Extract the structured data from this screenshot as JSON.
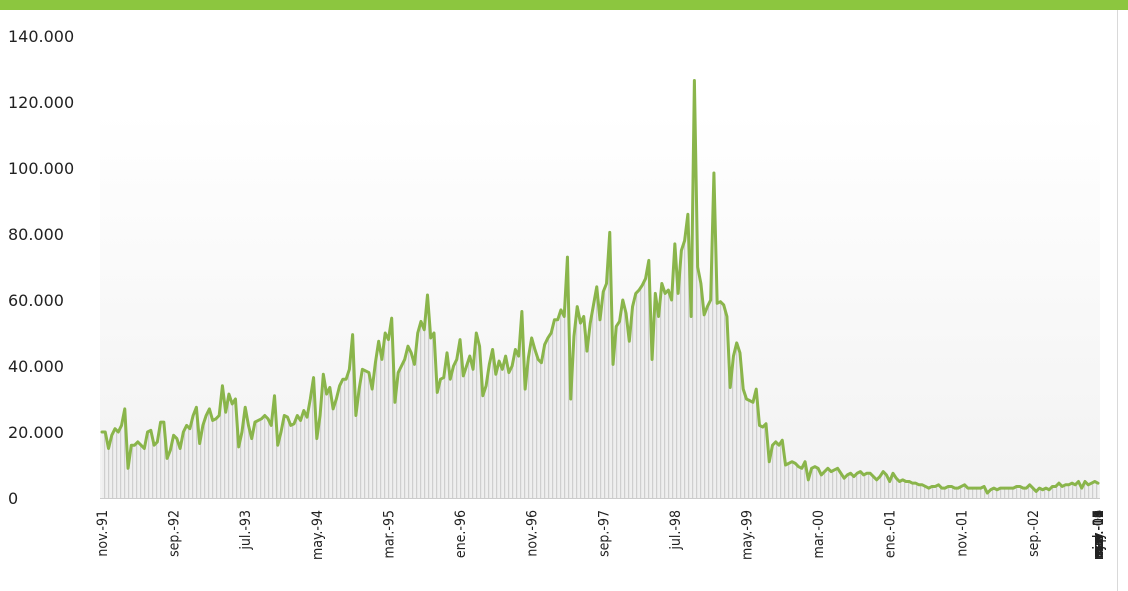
{
  "chart_data": {
    "type": "area",
    "title": "",
    "xlabel": "",
    "ylabel": "",
    "ylim": [
      0,
      140000
    ],
    "yticks": [
      0,
      20000,
      40000,
      60000,
      80000,
      100000,
      120000,
      140000
    ],
    "ytick_labels": [
      "0",
      "20.000",
      "40.000",
      "60.000",
      "80.000",
      "100.000",
      "120.000",
      "140.000"
    ],
    "x_tick_labels": [
      "nov.-91",
      "sep.-92",
      "jul.-93",
      "may.-94",
      "mar.-95",
      "ene.-96",
      "nov.-96",
      "sep.-97",
      "jul.-98",
      "may.-99",
      "mar.-00",
      "ene.-01",
      "nov.-01",
      "sep.-02",
      "jul.-03",
      "may.-04",
      "mar.-05",
      "ene.-06",
      "nov.-06",
      "sep.-07",
      "jul.-08",
      "may.-09",
      "mar.-10",
      "ene.-11",
      "nov.-11",
      "sep.-12",
      "jul.-13",
      "may.-14",
      "mar.-15",
      "ene.-16"
    ],
    "x_start": "nov.-91",
    "x_end": "ene.-16",
    "frequency": "monthly",
    "grid": false,
    "legend": "none",
    "series": [
      {
        "line_color": "#8ab54b",
        "fill_color": "#e6e6e6",
        "values": [
          20000,
          20000,
          15000,
          19000,
          21000,
          20000,
          22000,
          27000,
          9000,
          16000,
          16000,
          17000,
          16000,
          15000,
          20000,
          20500,
          16000,
          17000,
          23000,
          23000,
          12000,
          14500,
          19000,
          18000,
          15000,
          20000,
          22000,
          21000,
          25000,
          27500,
          16500,
          22000,
          25000,
          27000,
          23500,
          24000,
          25000,
          34000,
          26000,
          31500,
          28500,
          30000,
          15500,
          20000,
          27500,
          22000,
          18000,
          23000,
          23500,
          24000,
          25000,
          24000,
          22000,
          31000,
          16000,
          20000,
          25000,
          24500,
          22000,
          22500,
          25000,
          23500,
          26500,
          24500,
          30000,
          36500,
          18000,
          25000,
          37500,
          31500,
          33500,
          27000,
          30000,
          34000,
          36000,
          36000,
          39000,
          49500,
          25000,
          33000,
          39000,
          38500,
          38000,
          33000,
          41000,
          47500,
          42000,
          50000,
          48000,
          54500,
          29000,
          38000,
          40000,
          42000,
          46000,
          44000,
          40500,
          50000,
          53500,
          51000,
          61500,
          48500,
          50000,
          32000,
          36000,
          36500,
          44000,
          36000,
          40000,
          42000,
          48000,
          37000,
          40000,
          43000,
          39000,
          50000,
          46000,
          31000,
          34000,
          40500,
          45000,
          37500,
          41500,
          39000,
          43000,
          38000,
          40000,
          45000,
          43000,
          56500,
          33000,
          42500,
          48500,
          45000,
          42000,
          41000,
          46500,
          48500,
          50000,
          54000,
          54000,
          57000,
          55000,
          73000,
          30000,
          49000,
          58000,
          53000,
          55000,
          44500,
          53000,
          58500,
          64000,
          54000,
          62500,
          65000,
          80500,
          40500,
          52000,
          53500,
          60000,
          56000,
          47500,
          58000,
          62000,
          63000,
          64500,
          66500,
          72000,
          42000,
          62000,
          55000,
          65000,
          62000,
          63000,
          60000,
          77000,
          62000,
          75000,
          78000,
          86000,
          55000,
          126500,
          70000,
          65000,
          55500,
          58000,
          60000,
          98500,
          59000,
          59500,
          58500,
          55000,
          33500,
          43000,
          47000,
          44000,
          33000,
          30000,
          29500,
          29000,
          33000,
          22000,
          21500,
          22500,
          11000,
          16000,
          17000,
          16000,
          17500,
          10000,
          10500,
          11000,
          10500,
          9500,
          9000,
          11000,
          5500,
          9000,
          9500,
          9000,
          7000,
          8000,
          9000,
          8000,
          8500,
          9000,
          7500,
          6000,
          7000,
          7500,
          6500,
          7500,
          8000,
          7000,
          7500,
          7500,
          6500,
          5500,
          6500,
          8000,
          7000,
          5000,
          7500,
          6000,
          5000,
          5500,
          5000,
          5000,
          4500,
          4500,
          4000,
          4000,
          3500,
          3000,
          3500,
          3500,
          4000,
          3000,
          3000,
          3500,
          3500,
          3000,
          3000,
          3500,
          4000,
          3000,
          3000,
          3000,
          3000,
          3000,
          3500,
          1500,
          2500,
          3000,
          2500,
          3000,
          3000,
          3000,
          3000,
          3000,
          3500,
          3500,
          3000,
          3000,
          4000,
          3000,
          2000,
          3000,
          2500,
          3000,
          2500,
          3500,
          3500,
          4500,
          3500,
          4000,
          4000,
          4500,
          4000,
          5000,
          3000,
          5000,
          4000,
          4500,
          5000,
          4500
        ]
      }
    ]
  }
}
